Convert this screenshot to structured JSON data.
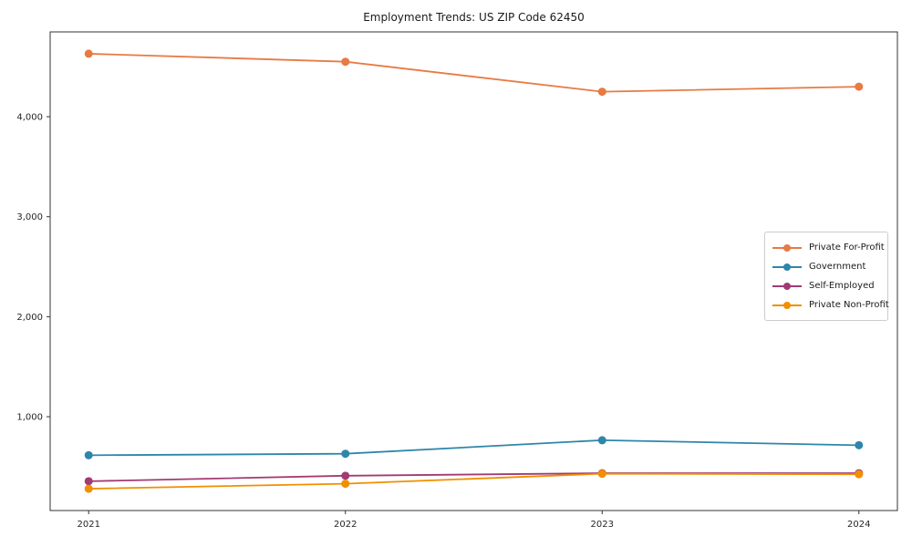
{
  "chart_data": {
    "type": "line",
    "title": "Employment Trends: US ZIP Code 62450",
    "xlabel": "",
    "ylabel": "",
    "x": [
      2021,
      2022,
      2023,
      2024
    ],
    "x_tick_labels": [
      "2021",
      "2022",
      "2023",
      "2024"
    ],
    "y_ticks": [
      1000,
      2000,
      3000,
      4000
    ],
    "y_tick_labels": [
      "1,000",
      "2,000",
      "3,000",
      "4,000"
    ],
    "xlim": [
      2020.85,
      2024.15
    ],
    "ylim": [
      62,
      4848
    ],
    "grid": false,
    "legend_position": "center right",
    "marker": "circle",
    "frame_color": "#333333",
    "background_color": "#ffffff",
    "series": [
      {
        "name": "Private For-Profit",
        "color": "#e87a43",
        "values": [
          4630,
          4550,
          4250,
          4300
        ]
      },
      {
        "name": "Government",
        "color": "#2e86ab",
        "values": [
          615,
          630,
          765,
          715
        ]
      },
      {
        "name": "Self-Employed",
        "color": "#a23b72",
        "values": [
          355,
          410,
          435,
          435
        ]
      },
      {
        "name": "Private Non-Profit",
        "color": "#f18f01",
        "values": [
          280,
          330,
          430,
          425
        ]
      }
    ]
  }
}
